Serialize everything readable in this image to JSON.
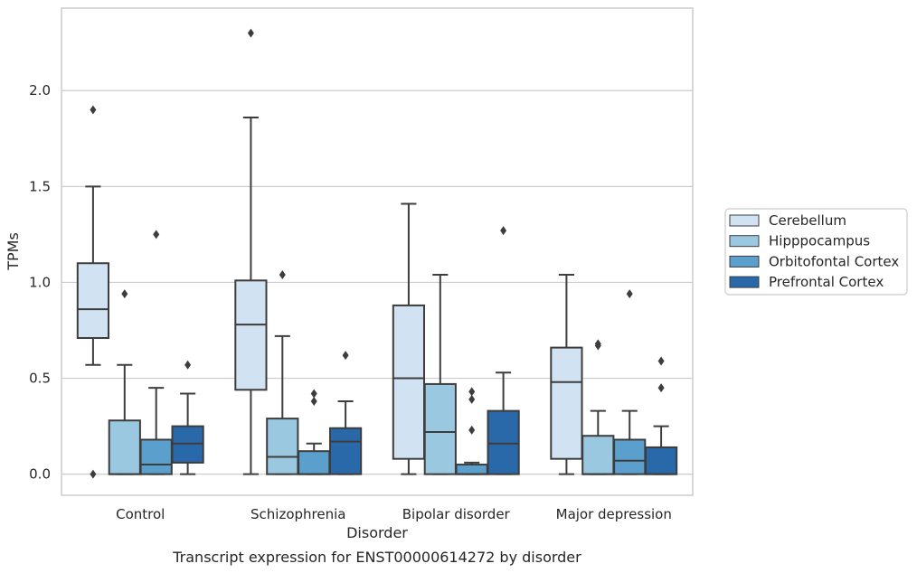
{
  "chart_data": {
    "type": "box",
    "title": "",
    "caption": "Transcript expression for ENST00000614272 by disorder",
    "xlabel": "Disorder",
    "ylabel": "TPMs",
    "ylim": [
      -0.11,
      2.43
    ],
    "yticks": [
      "0.0",
      "0.5",
      "1.0",
      "1.5",
      "2.0"
    ],
    "ytick_values": [
      0.0,
      0.5,
      1.0,
      1.5,
      2.0
    ],
    "grid": "horizontal",
    "legend_position": "right",
    "categories": [
      "Control",
      "Schizophrenia",
      "Bipolar disorder",
      "Major depression"
    ],
    "series": [
      {
        "name": "Cerebellum",
        "color": "#d1e2f2",
        "boxes": [
          {
            "whislo": 0.57,
            "q1": 0.71,
            "med": 0.86,
            "q3": 1.1,
            "whishi": 1.5,
            "fliers": [
              1.9,
              0.0
            ]
          },
          {
            "whislo": 0.0,
            "q1": 0.44,
            "med": 0.78,
            "q3": 1.01,
            "whishi": 1.86,
            "fliers": [
              2.3
            ]
          },
          {
            "whislo": 0.0,
            "q1": 0.08,
            "med": 0.5,
            "q3": 0.88,
            "whishi": 1.41,
            "fliers": []
          },
          {
            "whislo": 0.0,
            "q1": 0.08,
            "med": 0.48,
            "q3": 0.66,
            "whishi": 1.04,
            "fliers": []
          }
        ]
      },
      {
        "name": "Hipppocampus",
        "color": "#9ac8e0",
        "boxes": [
          {
            "whislo": 0.0,
            "q1": 0.0,
            "med": 0.0,
            "q3": 0.28,
            "whishi": 0.57,
            "fliers": [
              0.94
            ]
          },
          {
            "whislo": 0.0,
            "q1": 0.0,
            "med": 0.09,
            "q3": 0.29,
            "whishi": 0.72,
            "fliers": [
              1.04
            ]
          },
          {
            "whislo": 0.0,
            "q1": 0.0,
            "med": 0.22,
            "q3": 0.47,
            "whishi": 1.04,
            "fliers": []
          },
          {
            "whislo": 0.0,
            "q1": 0.0,
            "med": 0.0,
            "q3": 0.2,
            "whishi": 0.33,
            "fliers": [
              0.68,
              0.67
            ]
          }
        ]
      },
      {
        "name": "Orbitofontal Cortex",
        "color": "#5b9fcd",
        "boxes": [
          {
            "whislo": 0.0,
            "q1": 0.0,
            "med": 0.05,
            "q3": 0.18,
            "whishi": 0.45,
            "fliers": [
              1.25
            ]
          },
          {
            "whislo": 0.0,
            "q1": 0.0,
            "med": 0.0,
            "q3": 0.12,
            "whishi": 0.16,
            "fliers": [
              0.42,
              0.38
            ]
          },
          {
            "whislo": 0.0,
            "q1": 0.0,
            "med": 0.0,
            "q3": 0.05,
            "whishi": 0.06,
            "fliers": [
              0.43,
              0.39,
              0.23
            ]
          },
          {
            "whislo": 0.0,
            "q1": 0.0,
            "med": 0.07,
            "q3": 0.18,
            "whishi": 0.33,
            "fliers": [
              0.94
            ]
          }
        ]
      },
      {
        "name": "Prefrontal Cortex",
        "color": "#2a69a9",
        "boxes": [
          {
            "whislo": 0.0,
            "q1": 0.06,
            "med": 0.16,
            "q3": 0.25,
            "whishi": 0.42,
            "fliers": [
              0.57
            ]
          },
          {
            "whislo": 0.0,
            "q1": 0.0,
            "med": 0.17,
            "q3": 0.24,
            "whishi": 0.38,
            "fliers": [
              0.62
            ]
          },
          {
            "whislo": 0.0,
            "q1": 0.0,
            "med": 0.16,
            "q3": 0.33,
            "whishi": 0.53,
            "fliers": [
              1.27
            ]
          },
          {
            "whislo": 0.0,
            "q1": 0.0,
            "med": 0.0,
            "q3": 0.14,
            "whishi": 0.25,
            "fliers": [
              0.59,
              0.45
            ]
          }
        ]
      }
    ]
  }
}
